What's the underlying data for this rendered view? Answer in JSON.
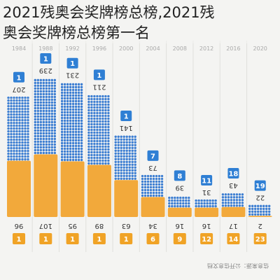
{
  "headline": {
    "line1": "2021残奥会奖牌榜总榜,2021残",
    "line2": "奥会奖牌榜总榜第一名"
  },
  "chart_data": {
    "type": "bar",
    "title": "",
    "years": [
      "1984",
      "1988",
      "1992",
      "1996",
      "2000",
      "2004",
      "2008",
      "2012",
      "2016",
      "2020"
    ],
    "series": [
      {
        "name": "",
        "values": [
          207,
          239,
          231,
          211,
          141,
          73,
          39,
          31,
          43,
          22
        ]
      },
      {
        "name": "",
        "values": [
          96,
          107,
          95,
          89,
          63,
          34,
          16,
          16,
          17,
          2
        ]
      }
    ],
    "top_ranks": [
      1,
      1,
      1,
      1,
      1,
      7,
      8,
      11,
      18,
      19
    ],
    "bottom_ranks": [
      1,
      1,
      1,
      1,
      1,
      6,
      9,
      12,
      14,
      23
    ],
    "source": "信息来源：公开信息文档",
    "colors": {
      "top_series": "#3e7fd2",
      "bottom_series": "#f2a93b",
      "top_badge": "#2f7fd4",
      "bottom_badge": "#f0a326",
      "grid": "#e0e0dc",
      "label": "#333333"
    }
  }
}
